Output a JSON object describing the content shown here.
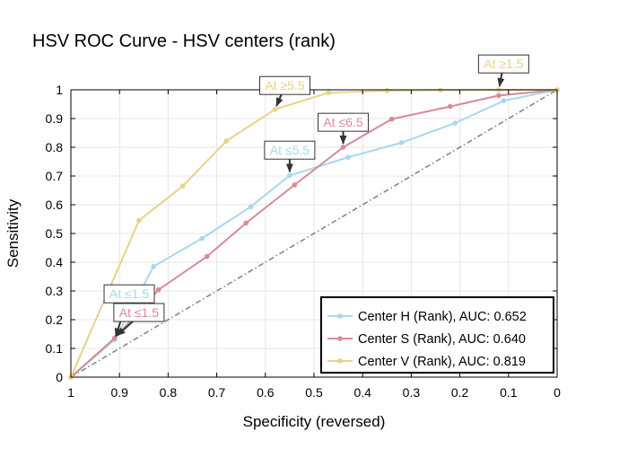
{
  "chart_data": {
    "type": "line",
    "title": "HSV ROC Curve - HSV centers (rank)",
    "xlabel": "Specificity (reversed)",
    "ylabel": "Sensitivity",
    "xlim": [
      1,
      0
    ],
    "ylim": [
      0,
      1
    ],
    "x_ticks": [
      "1",
      "0.9",
      "0.8",
      "0.7",
      "0.6",
      "0.5",
      "0.4",
      "0.3",
      "0.2",
      "0.1",
      "0"
    ],
    "y_ticks": [
      "0",
      "0.1",
      "0.2",
      "0.3",
      "0.4",
      "0.5",
      "0.6",
      "0.7",
      "0.8",
      "0.9",
      "1"
    ],
    "grid": true,
    "legend_position": "bottom-right",
    "diagonal": {
      "style": "dash-dot",
      "color": "#808080",
      "points": [
        [
          1,
          0
        ],
        [
          0,
          1
        ]
      ]
    },
    "series": [
      {
        "name": "Center H (Rank), AUC: 0.652",
        "color": "#a6d8f0",
        "specificity": [
          1,
          0.91,
          0.83,
          0.73,
          0.63,
          0.55,
          0.43,
          0.32,
          0.21,
          0.11,
          0
        ],
        "sensitivity": [
          0,
          0.13,
          0.385,
          0.483,
          0.593,
          0.702,
          0.765,
          0.816,
          0.884,
          0.962,
          1
        ]
      },
      {
        "name": "Center S (Rank), AUC: 0.640",
        "color": "#d98a96",
        "specificity": [
          1,
          0.91,
          0.82,
          0.72,
          0.64,
          0.54,
          0.44,
          0.34,
          0.22,
          0.12,
          0
        ],
        "sensitivity": [
          0,
          0.136,
          0.304,
          0.42,
          0.536,
          0.669,
          0.8,
          0.898,
          0.942,
          0.98,
          1
        ]
      },
      {
        "name": "Center V (Rank), AUC: 0.819",
        "color": "#e8d28a",
        "specificity": [
          1,
          0.86,
          0.77,
          0.68,
          0.58,
          0.47,
          0.35,
          0.24,
          0.12,
          0
        ],
        "sensitivity": [
          0,
          0.545,
          0.665,
          0.822,
          0.932,
          0.99,
          0.997,
          0.999,
          1,
          1
        ]
      }
    ],
    "annotations": [
      {
        "text": "At ≤1.5",
        "series": 0,
        "x": 0.91,
        "y": 0.13,
        "color": "#a6d8f0",
        "text_x": 0.88,
        "text_y": 0.29
      },
      {
        "text": "At ≤1.5",
        "series": 1,
        "x": 0.91,
        "y": 0.136,
        "color": "#d98a96",
        "text_x": 0.86,
        "text_y": 0.225
      },
      {
        "text": "At ≥5.5",
        "series": 2,
        "x": 0.58,
        "y": 0.932,
        "color": "#e8d28a",
        "text_x": 0.56,
        "text_y": 1.015
      },
      {
        "text": "At ≤5.5",
        "series": 0,
        "x": 0.55,
        "y": 0.702,
        "color": "#a6d8f0",
        "text_x": 0.55,
        "text_y": 0.79
      },
      {
        "text": "At ≤6.5",
        "series": 1,
        "x": 0.44,
        "y": 0.8,
        "color": "#d98a96",
        "text_x": 0.44,
        "text_y": 0.887
      },
      {
        "text": "At ≥1.5",
        "series": 2,
        "x": 0.12,
        "y": 1.0,
        "color": "#e8d28a",
        "text_x": 0.11,
        "text_y": 1.09
      }
    ]
  }
}
